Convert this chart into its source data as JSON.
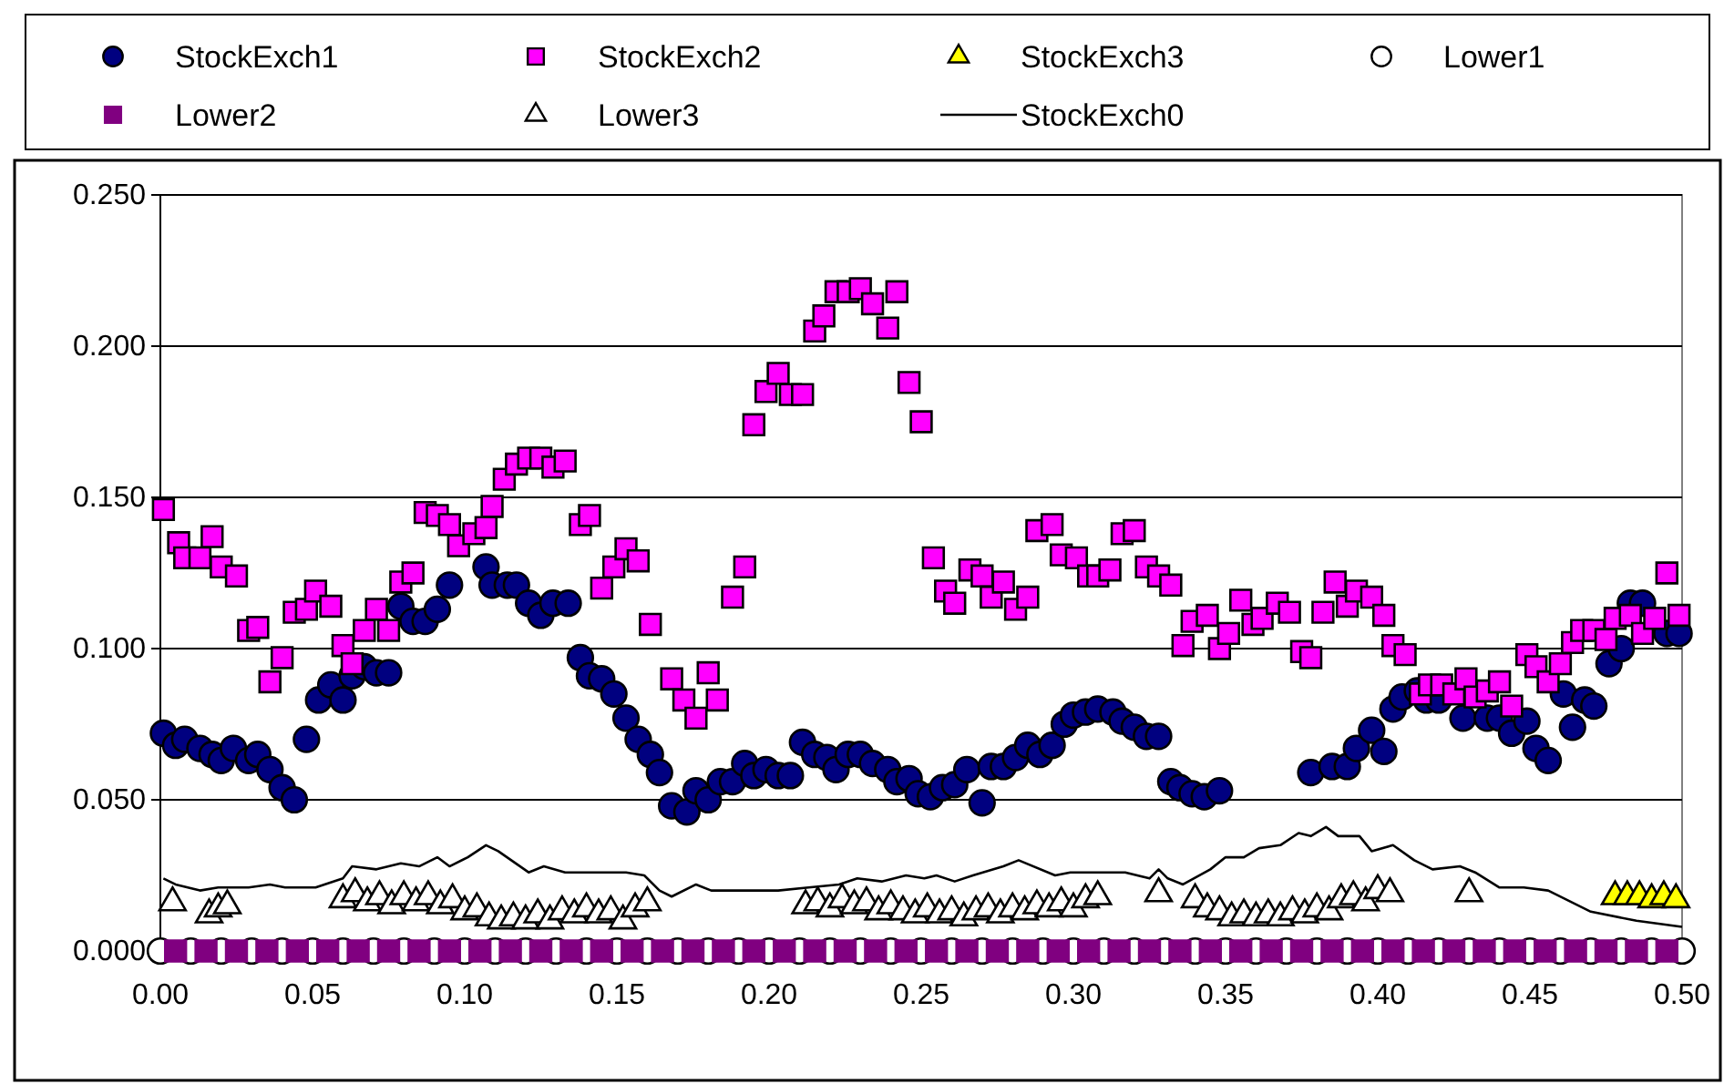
{
  "chart_data": {
    "type": "scatter",
    "xlim": [
      0,
      0.5
    ],
    "ylim": [
      0,
      0.25
    ],
    "xticks": [
      {
        "value": 0,
        "label": "0.00"
      },
      {
        "value": 0.05,
        "label": "0.05"
      },
      {
        "value": 0.1,
        "label": "0.10"
      },
      {
        "value": 0.15,
        "label": "0.15"
      },
      {
        "value": 0.2,
        "label": "0.20"
      },
      {
        "value": 0.25,
        "label": "0.25"
      },
      {
        "value": 0.3,
        "label": "0.30"
      },
      {
        "value": 0.35,
        "label": "0.35"
      },
      {
        "value": 0.4,
        "label": "0.40"
      },
      {
        "value": 0.45,
        "label": "0.45"
      },
      {
        "value": 0.5,
        "label": "0.50"
      }
    ],
    "yticks": [
      {
        "value": 0,
        "label": "0.000"
      },
      {
        "value": 0.05,
        "label": "0.050"
      },
      {
        "value": 0.1,
        "label": "0.100"
      },
      {
        "value": 0.15,
        "label": "0.150"
      },
      {
        "value": 0.2,
        "label": "0.200"
      },
      {
        "value": 0.25,
        "label": "0.250"
      }
    ],
    "grid": "y",
    "legend": "top",
    "series": [
      {
        "name": "StockExch1",
        "marker": "circle",
        "color": "#000080",
        "x": [
          0.001,
          0.005,
          0.008,
          0.013,
          0.017,
          0.02,
          0.024,
          0.029,
          0.032,
          0.036,
          0.04,
          0.044,
          0.048,
          0.052,
          0.056,
          0.06,
          0.063,
          0.067,
          0.071,
          0.075,
          0.079,
          0.083,
          0.087,
          0.091,
          0.095,
          0.107,
          0.109,
          0.114,
          0.117,
          0.121,
          0.125,
          0.129,
          0.134,
          0.138,
          0.141,
          0.145,
          0.149,
          0.153,
          0.157,
          0.161,
          0.164,
          0.168,
          0.173,
          0.176,
          0.18,
          0.184,
          0.188,
          0.192,
          0.195,
          0.199,
          0.203,
          0.207,
          0.211,
          0.215,
          0.219,
          0.222,
          0.226,
          0.23,
          0.234,
          0.239,
          0.242,
          0.246,
          0.249,
          0.253,
          0.257,
          0.261,
          0.265,
          0.27,
          0.273,
          0.277,
          0.281,
          0.285,
          0.289,
          0.293,
          0.297,
          0.3,
          0.304,
          0.308,
          0.313,
          0.316,
          0.32,
          0.324,
          0.328,
          0.332,
          0.335,
          0.339,
          0.343,
          0.348,
          0.378,
          0.385,
          0.39,
          0.393,
          0.398,
          0.402,
          0.405,
          0.408,
          0.413,
          0.416,
          0.42,
          0.424,
          0.428,
          0.432,
          0.436,
          0.44,
          0.444,
          0.449,
          0.452,
          0.456,
          0.461,
          0.464,
          0.468,
          0.471,
          0.476,
          0.48,
          0.483,
          0.487,
          0.491,
          0.495,
          0.499
        ],
        "values": [
          0.072,
          0.068,
          0.07,
          0.067,
          0.065,
          0.063,
          0.067,
          0.063,
          0.065,
          0.06,
          0.054,
          0.05,
          0.07,
          0.083,
          0.088,
          0.083,
          0.091,
          0.094,
          0.092,
          0.092,
          0.114,
          0.109,
          0.109,
          0.113,
          0.121,
          0.127,
          0.121,
          0.121,
          0.121,
          0.115,
          0.111,
          0.115,
          0.115,
          0.097,
          0.091,
          0.09,
          0.085,
          0.077,
          0.07,
          0.065,
          0.059,
          0.048,
          0.046,
          0.053,
          0.05,
          0.056,
          0.056,
          0.062,
          0.058,
          0.06,
          0.058,
          0.058,
          0.069,
          0.065,
          0.064,
          0.06,
          0.065,
          0.065,
          0.062,
          0.06,
          0.056,
          0.057,
          0.052,
          0.051,
          0.054,
          0.055,
          0.06,
          0.049,
          0.061,
          0.061,
          0.064,
          0.068,
          0.065,
          0.068,
          0.075,
          0.078,
          0.079,
          0.08,
          0.079,
          0.076,
          0.074,
          0.071,
          0.071,
          0.056,
          0.054,
          0.052,
          0.051,
          0.053,
          0.059,
          0.061,
          0.061,
          0.067,
          0.073,
          0.066,
          0.08,
          0.084,
          0.086,
          0.083,
          0.083,
          null,
          0.077,
          null,
          0.077,
          0.077,
          0.072,
          0.076,
          0.067,
          0.063,
          0.085,
          0.074,
          0.083,
          0.081,
          0.095,
          0.1,
          0.115,
          0.115,
          null,
          0.105,
          0.105
        ]
      },
      {
        "name": "StockExch2",
        "marker": "square",
        "color": "#ff00ff",
        "x": [
          0.001,
          0.006,
          0.008,
          0.013,
          0.017,
          0.02,
          0.025,
          0.029,
          0.032,
          0.036,
          0.04,
          0.044,
          0.048,
          0.051,
          0.056,
          0.06,
          0.063,
          0.067,
          0.071,
          0.075,
          0.079,
          0.083,
          0.087,
          0.091,
          0.095,
          0.098,
          0.103,
          0.107,
          0.109,
          0.113,
          0.117,
          0.121,
          0.125,
          0.129,
          0.133,
          0.138,
          0.141,
          0.145,
          0.149,
          0.153,
          0.157,
          0.161,
          0.168,
          0.172,
          0.176,
          0.18,
          0.183,
          0.188,
          0.192,
          0.195,
          0.199,
          0.203,
          0.207,
          0.211,
          0.215,
          0.218,
          0.222,
          0.226,
          0.23,
          0.234,
          0.239,
          0.242,
          0.246,
          0.25,
          0.254,
          0.258,
          0.261,
          0.266,
          0.27,
          0.273,
          0.277,
          0.281,
          0.285,
          0.288,
          0.293,
          0.296,
          0.301,
          0.305,
          0.308,
          0.312,
          0.316,
          0.32,
          0.324,
          0.328,
          0.332,
          0.336,
          0.339,
          0.344,
          0.348,
          0.351,
          0.355,
          0.359,
          0.362,
          0.367,
          0.371,
          0.375,
          0.378,
          0.382,
          0.386,
          0.39,
          0.393,
          0.398,
          0.402,
          0.405,
          0.409,
          0.414,
          0.417,
          0.421,
          0.425,
          0.429,
          0.432,
          0.436,
          0.44,
          0.444,
          0.449,
          0.452,
          0.456,
          0.46,
          0.464,
          0.467,
          0.471,
          0.475,
          0.478,
          0.483,
          0.487,
          0.491,
          0.495,
          0.499
        ],
        "values": [
          0.146,
          0.135,
          0.13,
          0.13,
          0.137,
          0.127,
          0.124,
          0.106,
          0.107,
          0.089,
          0.097,
          0.112,
          0.113,
          0.119,
          0.114,
          0.101,
          0.095,
          0.106,
          0.113,
          0.106,
          0.122,
          0.125,
          0.145,
          0.144,
          0.141,
          0.134,
          0.138,
          0.14,
          0.147,
          0.156,
          0.161,
          0.163,
          0.163,
          0.16,
          0.162,
          0.141,
          0.144,
          0.12,
          0.127,
          0.133,
          0.129,
          0.108,
          0.09,
          0.083,
          0.077,
          0.092,
          0.083,
          0.117,
          0.127,
          0.174,
          0.185,
          0.191,
          0.184,
          0.184,
          0.205,
          0.21,
          0.218,
          0.218,
          0.219,
          0.214,
          0.206,
          0.218,
          0.188,
          0.175,
          0.13,
          0.119,
          0.115,
          0.126,
          0.124,
          0.117,
          0.122,
          0.113,
          0.117,
          0.139,
          0.141,
          0.131,
          0.13,
          0.124,
          0.124,
          0.126,
          0.138,
          0.139,
          0.127,
          0.124,
          0.121,
          0.101,
          0.109,
          0.111,
          0.1,
          0.105,
          0.116,
          0.108,
          0.11,
          0.115,
          0.112,
          0.099,
          0.097,
          0.112,
          0.122,
          0.114,
          0.119,
          0.117,
          0.111,
          0.101,
          0.098,
          0.085,
          0.088,
          0.088,
          0.085,
          0.09,
          0.084,
          0.086,
          0.089,
          0.081,
          0.098,
          0.094,
          0.089,
          0.095,
          0.102,
          0.106,
          0.106,
          0.103,
          0.11,
          0.111,
          0.105,
          0.11,
          0.125,
          0.111
        ]
      },
      {
        "name": "StockExch3",
        "marker": "triangle",
        "color": "#ffff00",
        "x": [
          0.478,
          0.482,
          0.486,
          0.49,
          0.494,
          0.498
        ],
        "values": [
          0.018,
          0.018,
          0.018,
          0.017,
          0.018,
          0.017
        ]
      },
      {
        "name": "Lower1",
        "marker": "circle",
        "color": "#ffffff",
        "x": [
          0,
          0.01,
          0.02,
          0.03,
          0.04,
          0.05,
          0.06,
          0.07,
          0.08,
          0.09,
          0.1,
          0.11,
          0.12,
          0.13,
          0.14,
          0.15,
          0.16,
          0.17,
          0.18,
          0.19,
          0.2,
          0.21,
          0.22,
          0.23,
          0.24,
          0.25,
          0.26,
          0.27,
          0.28,
          0.29,
          0.3,
          0.31,
          0.32,
          0.33,
          0.34,
          0.35,
          0.36,
          0.37,
          0.38,
          0.39,
          0.4,
          0.41,
          0.42,
          0.43,
          0.44,
          0.45,
          0.46,
          0.47,
          0.48,
          0.49,
          0.5
        ],
        "values": [
          0,
          0,
          0,
          0,
          0,
          0,
          0,
          0,
          0,
          0,
          0,
          0,
          0,
          0,
          0,
          0,
          0,
          0,
          0,
          0,
          0,
          0,
          0,
          0,
          0,
          0,
          0,
          0,
          0,
          0,
          0,
          0,
          0,
          0,
          0,
          0,
          0,
          0,
          0,
          0,
          0,
          0,
          0,
          0,
          0,
          0,
          0,
          0,
          0,
          0,
          0
        ]
      },
      {
        "name": "Lower2",
        "marker": "square",
        "color": "#800080",
        "x": [
          0.005,
          0.015,
          0.025,
          0.035,
          0.045,
          0.055,
          0.065,
          0.075,
          0.085,
          0.095,
          0.105,
          0.115,
          0.125,
          0.135,
          0.145,
          0.155,
          0.165,
          0.175,
          0.185,
          0.195,
          0.205,
          0.215,
          0.225,
          0.235,
          0.245,
          0.255,
          0.265,
          0.275,
          0.285,
          0.295,
          0.305,
          0.315,
          0.325,
          0.335,
          0.345,
          0.355,
          0.365,
          0.375,
          0.385,
          0.395,
          0.405,
          0.415,
          0.425,
          0.435,
          0.445,
          0.455,
          0.465,
          0.475,
          0.485,
          0.495
        ],
        "values": [
          0,
          0,
          0,
          0,
          0,
          0,
          0,
          0,
          0,
          0,
          0,
          0,
          0,
          0,
          0,
          0,
          0,
          0,
          0,
          0,
          0,
          0,
          0,
          0,
          0,
          0,
          0,
          0,
          0,
          0,
          0,
          0,
          0,
          0,
          0,
          0,
          0,
          0,
          0,
          0,
          0,
          0,
          0,
          0,
          0,
          0,
          0,
          0,
          0,
          0
        ]
      },
      {
        "name": "Lower3",
        "marker": "triangle",
        "color": "#ffffff",
        "x": [
          0.004,
          0.016,
          0.019,
          0.022,
          0.06,
          0.064,
          0.068,
          0.072,
          0.076,
          0.08,
          0.084,
          0.088,
          0.092,
          0.096,
          0.1,
          0.104,
          0.108,
          0.112,
          0.116,
          0.12,
          0.124,
          0.128,
          0.132,
          0.136,
          0.14,
          0.144,
          0.148,
          0.152,
          0.156,
          0.16,
          0.212,
          0.216,
          0.22,
          0.224,
          0.228,
          0.232,
          0.236,
          0.24,
          0.244,
          0.248,
          0.252,
          0.256,
          0.26,
          0.264,
          0.268,
          0.272,
          0.276,
          0.28,
          0.284,
          0.288,
          0.292,
          0.296,
          0.3,
          0.304,
          0.308,
          0.328,
          0.34,
          0.344,
          0.348,
          0.352,
          0.356,
          0.36,
          0.364,
          0.368,
          0.372,
          0.376,
          0.38,
          0.384,
          0.388,
          0.392,
          0.396,
          0.4,
          0.404,
          0.43
        ],
        "values": [
          0.016,
          0.012,
          0.014,
          0.015,
          0.017,
          0.019,
          0.016,
          0.018,
          0.015,
          0.018,
          0.016,
          0.018,
          0.015,
          0.017,
          0.013,
          0.014,
          0.011,
          0.01,
          0.011,
          0.01,
          0.012,
          0.01,
          0.013,
          0.012,
          0.014,
          0.012,
          0.013,
          0.01,
          0.014,
          0.016,
          0.015,
          0.016,
          0.014,
          0.017,
          0.015,
          0.016,
          0.013,
          0.015,
          0.013,
          0.012,
          0.014,
          0.012,
          0.013,
          0.011,
          0.013,
          0.014,
          0.012,
          0.014,
          0.013,
          0.015,
          0.014,
          0.016,
          0.014,
          0.017,
          0.018,
          0.019,
          0.017,
          0.014,
          0.013,
          0.011,
          0.012,
          0.011,
          0.012,
          0.011,
          0.013,
          0.012,
          0.014,
          0.013,
          0.017,
          0.018,
          0.016,
          0.02,
          0.019,
          0.019
        ]
      },
      {
        "name": "StockExch0",
        "type": "line",
        "marker": "none",
        "line_style": "solid",
        "color": "#000000",
        "x": [
          0.001,
          0.005,
          0.013,
          0.019,
          0.029,
          0.036,
          0.041,
          0.051,
          0.06,
          0.063,
          0.071,
          0.079,
          0.085,
          0.091,
          0.095,
          0.101,
          0.107,
          0.111,
          0.121,
          0.126,
          0.133,
          0.143,
          0.153,
          0.159,
          0.164,
          0.168,
          0.176,
          0.181,
          0.203,
          0.213,
          0.223,
          0.229,
          0.237,
          0.245,
          0.251,
          0.255,
          0.261,
          0.267,
          0.277,
          0.282,
          0.294,
          0.299,
          0.307,
          0.317,
          0.325,
          0.328,
          0.331,
          0.336,
          0.345,
          0.35,
          0.356,
          0.361,
          0.368,
          0.374,
          0.378,
          0.383,
          0.387,
          0.394,
          0.398,
          0.405,
          0.412,
          0.418,
          0.427,
          0.432,
          0.44,
          0.448,
          0.456,
          0.47,
          0.485,
          0.5
        ],
        "values": [
          0.024,
          0.022,
          0.02,
          0.021,
          0.021,
          0.022,
          0.021,
          0.021,
          0.024,
          0.028,
          0.027,
          0.029,
          0.028,
          0.031,
          0.028,
          0.031,
          0.035,
          0.033,
          0.026,
          0.028,
          0.026,
          0.026,
          0.026,
          0.025,
          0.02,
          0.018,
          0.022,
          0.02,
          0.02,
          0.021,
          0.022,
          0.024,
          0.023,
          0.025,
          0.024,
          0.025,
          0.023,
          0.025,
          0.028,
          0.03,
          0.025,
          0.026,
          0.026,
          0.026,
          0.024,
          0.027,
          0.024,
          0.022,
          0.027,
          0.031,
          0.031,
          0.034,
          0.035,
          0.039,
          0.038,
          0.041,
          0.038,
          0.038,
          0.033,
          0.035,
          0.03,
          0.027,
          0.028,
          0.026,
          0.021,
          0.021,
          0.02,
          0.013,
          0.01,
          0.008
        ]
      }
    ]
  }
}
